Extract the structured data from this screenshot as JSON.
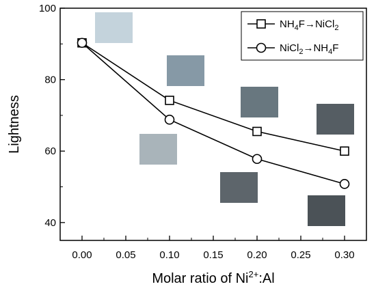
{
  "chart_data": {
    "type": "line",
    "xlabel": "Molar ratio of Ni",
    "xlabel_sup": "2+",
    "xlabel_suffix": ":Al",
    "ylabel": "Lightness",
    "xlim": [
      -0.025,
      0.325
    ],
    "ylim": [
      35,
      100
    ],
    "xticks": [
      "0.00",
      "0.05",
      "0.10",
      "0.15",
      "0.20",
      "0.25",
      "0.30"
    ],
    "yticks": [
      "40",
      "60",
      "80",
      "100"
    ],
    "grid": false,
    "legend_position": "top-right",
    "series": [
      {
        "name_parts": [
          "NH",
          "4",
          "F",
          "→",
          "NiCl",
          "2"
        ],
        "marker": "square",
        "x": [
          0.0,
          0.1,
          0.2,
          0.3
        ],
        "y": [
          90.3,
          74.2,
          65.5,
          60.0
        ]
      },
      {
        "name_parts": [
          "NiCl",
          "2",
          "→",
          "NH",
          "4",
          "F"
        ],
        "marker": "circle",
        "x": [
          0.0,
          0.1,
          0.2,
          0.3
        ],
        "y": [
          90.3,
          68.8,
          57.8,
          50.8
        ]
      }
    ],
    "swatches": [
      {
        "color": "#c4d3dc"
      },
      {
        "color": "#8699a6"
      },
      {
        "color": "#68777f"
      },
      {
        "color": "#555d63"
      },
      {
        "color": "#a9b4ba"
      },
      {
        "color": "#5d656b"
      },
      {
        "color": "#4b5257"
      }
    ]
  }
}
